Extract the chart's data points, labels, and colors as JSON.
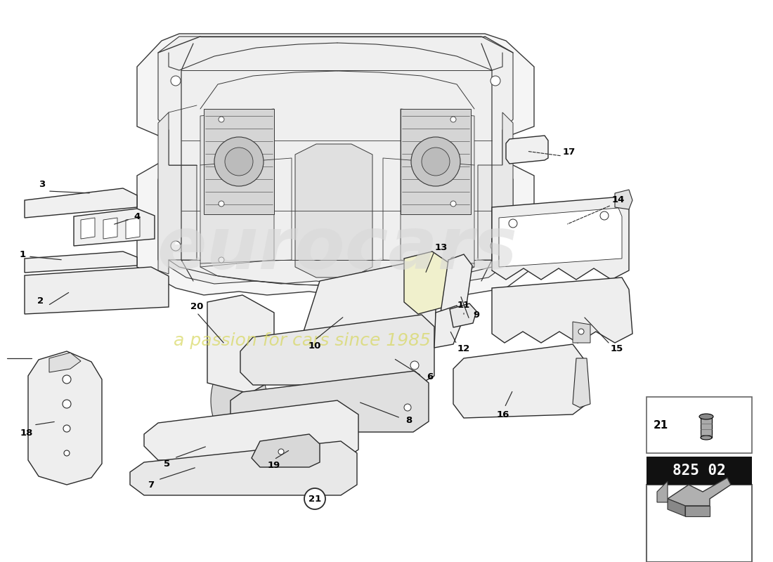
{
  "background_color": "#ffffff",
  "part_number_badge": "825 02",
  "line_color": "#2a2a2a",
  "part_fill": "#f0f0f0",
  "part_fill_light": "#f8f8f8",
  "part_fill_yellow": "#f5f5d0",
  "watermark_color": "#e0e0e0",
  "watermark_yellow": "#e8e870"
}
